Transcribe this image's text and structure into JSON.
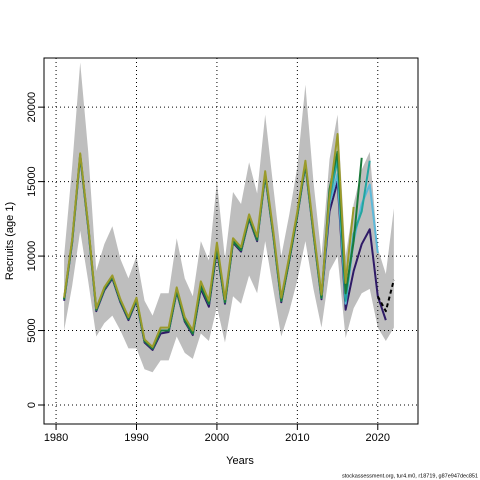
{
  "chart_data": {
    "type": "line",
    "x_label": "Years",
    "y_label": "Recruits (age 1)",
    "footer": "stockassessment.org, tur4.m0, r18719, g87e947dec851",
    "x": [
      1981,
      1982,
      1983,
      1984,
      1985,
      1986,
      1987,
      1988,
      1989,
      1990,
      1991,
      1992,
      1993,
      1994,
      1995,
      1996,
      1997,
      1998,
      1999,
      2000,
      2001,
      2002,
      2003,
      2004,
      2005,
      2006,
      2007,
      2008,
      2009,
      2010,
      2011,
      2012,
      2013,
      2014,
      2015,
      2016,
      2017,
      2018,
      2019,
      2020,
      2021,
      2022
    ],
    "band": {
      "color": "#bebebe",
      "upper": [
        10000,
        16000,
        23000,
        17000,
        9000,
        10800,
        12000,
        9800,
        8500,
        10000,
        7000,
        6000,
        7500,
        7500,
        11200,
        8500,
        7300,
        11000,
        9700,
        15000,
        9800,
        14300,
        13500,
        16300,
        14200,
        19500,
        14700,
        10000,
        12800,
        16000,
        21500,
        15000,
        10000,
        16500,
        19500,
        10000,
        13500,
        15800,
        17000,
        10500,
        8800,
        13200
      ],
      "lower": [
        5000,
        8000,
        11700,
        8300,
        4600,
        5500,
        6000,
        5000,
        3800,
        3800,
        2400,
        2200,
        3000,
        3000,
        4600,
        3500,
        3100,
        4800,
        4300,
        6600,
        4200,
        7300,
        6800,
        8700,
        7500,
        11000,
        7800,
        4600,
        6300,
        8400,
        11000,
        7800,
        5200,
        9000,
        10000,
        4500,
        6500,
        7500,
        7800,
        5200,
        4300,
        5200
      ]
    },
    "series": [
      {
        "color": "#2e1a66",
        "values": [
          7000,
          10900,
          16700,
          11900,
          6300,
          7700,
          8500,
          6900,
          5700,
          7000,
          4200,
          3700,
          4800,
          4900,
          7600,
          5600,
          4700,
          7800,
          6600,
          10400,
          6800,
          10900,
          10300,
          12500,
          11000,
          15400,
          11400,
          6900,
          9700,
          12700,
          16100,
          11500,
          7100,
          13000,
          15000,
          6400,
          9000,
          10800,
          11800,
          7300,
          5700,
          null
        ]
      },
      {
        "color": "#5cb8d8",
        "values": [
          7100,
          11000,
          16800,
          12000,
          6400,
          7800,
          8600,
          7000,
          5800,
          7100,
          4300,
          3800,
          5000,
          5000,
          7700,
          5700,
          4800,
          8000,
          6800,
          10600,
          6900,
          11000,
          10400,
          12600,
          11100,
          15500,
          11500,
          7000,
          9800,
          12800,
          16200,
          11600,
          7200,
          13500,
          15500,
          6800,
          11000,
          13500,
          14800,
          10200,
          null,
          null
        ]
      },
      {
        "color": "#23a6a0",
        "values": [
          7100,
          11000,
          16800,
          12000,
          6400,
          7800,
          8600,
          7000,
          5800,
          7100,
          4300,
          3800,
          5000,
          5000,
          7700,
          5700,
          4800,
          8000,
          6800,
          10600,
          6900,
          11000,
          10400,
          12600,
          11100,
          15500,
          11500,
          7000,
          9800,
          12800,
          16200,
          11600,
          7200,
          13800,
          16500,
          7000,
          11500,
          13000,
          16400,
          null,
          null,
          null
        ]
      },
      {
        "color": "#1a7a3a",
        "values": [
          7100,
          11000,
          16800,
          12000,
          6400,
          7800,
          8600,
          7000,
          5800,
          7100,
          4300,
          3800,
          5000,
          5000,
          7700,
          5700,
          4800,
          8000,
          6800,
          10600,
          6900,
          11000,
          10400,
          12600,
          11100,
          15500,
          11500,
          7000,
          9800,
          12800,
          16200,
          11600,
          7200,
          14500,
          17000,
          7500,
          11000,
          16600,
          null,
          null,
          null,
          null
        ]
      },
      {
        "color": "#9a9a2a",
        "values": [
          7200,
          11100,
          16900,
          12100,
          6500,
          7900,
          8700,
          7100,
          5900,
          7200,
          4400,
          3900,
          5200,
          5200,
          7900,
          5900,
          5000,
          8300,
          7000,
          10900,
          7100,
          11200,
          10600,
          12800,
          11300,
          15700,
          11700,
          7200,
          10000,
          13000,
          16400,
          11800,
          7400,
          14000,
          18200,
          8200,
          13300,
          null,
          null,
          null,
          null,
          null
        ]
      },
      {
        "color": "#000000",
        "dashed": true,
        "values": [
          null,
          null,
          null,
          null,
          null,
          null,
          null,
          null,
          null,
          null,
          null,
          null,
          null,
          null,
          null,
          null,
          null,
          null,
          null,
          null,
          null,
          null,
          null,
          null,
          null,
          null,
          null,
          null,
          null,
          null,
          null,
          null,
          null,
          null,
          null,
          null,
          null,
          null,
          null,
          7300,
          6300,
          8400
        ]
      }
    ],
    "xlim": [
      1978.5,
      2025
    ],
    "ylim": [
      -1275,
      23300
    ],
    "xticks": [
      1980,
      1990,
      2000,
      2010,
      2020
    ],
    "yticks": [
      0,
      5000,
      10000,
      15000,
      20000
    ],
    "grid": true
  }
}
